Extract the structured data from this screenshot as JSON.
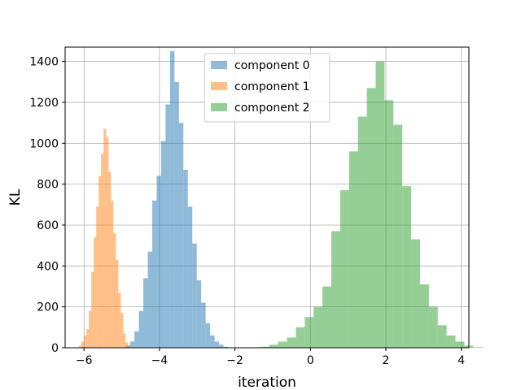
{
  "chart_data": {
    "type": "histogram",
    "xlabel": "iteration",
    "ylabel": "KL",
    "xlim": [
      -6.5,
      4.2
    ],
    "ylim": [
      0,
      1470
    ],
    "xticks": [
      -6,
      -4,
      -2,
      0,
      2,
      4
    ],
    "xtick_labels": [
      "−6",
      "−4",
      "−2",
      "0",
      "2",
      "4"
    ],
    "yticks": [
      0,
      200,
      400,
      600,
      800,
      1000,
      1200,
      1400
    ],
    "ytick_labels": [
      "0",
      "200",
      "400",
      "600",
      "800",
      "1000",
      "1200",
      "1400"
    ],
    "grid": true,
    "legend_position": "top-center",
    "series": [
      {
        "name": "component 0",
        "color": "#1f77b4",
        "alpha": 0.5,
        "bin_start": -4.9,
        "bin_width": 0.118,
        "values": [
          10,
          30,
          80,
          180,
          340,
          470,
          720,
          840,
          1010,
          1190,
          1450,
          1300,
          1100,
          870,
          690,
          510,
          330,
          220,
          120,
          60,
          30,
          15,
          5
        ]
      },
      {
        "name": "component 1",
        "color": "#ff7f0e",
        "alpha": 0.5,
        "bin_start": -6.13,
        "bin_width": 0.065,
        "values": [
          10,
          30,
          60,
          90,
          180,
          370,
          540,
          690,
          840,
          950,
          1070,
          1030,
          860,
          720,
          560,
          430,
          270,
          170,
          70,
          25,
          10
        ]
      },
      {
        "name": "component 2",
        "color": "#2ca02c",
        "alpha": 0.5,
        "bin_start": -1.56,
        "bin_width": 0.235,
        "values": [
          2,
          5,
          15,
          30,
          50,
          100,
          150,
          200,
          300,
          570,
          770,
          960,
          1130,
          1270,
          1400,
          1210,
          1090,
          790,
          530,
          310,
          200,
          110,
          60,
          30,
          10,
          3
        ]
      }
    ]
  }
}
